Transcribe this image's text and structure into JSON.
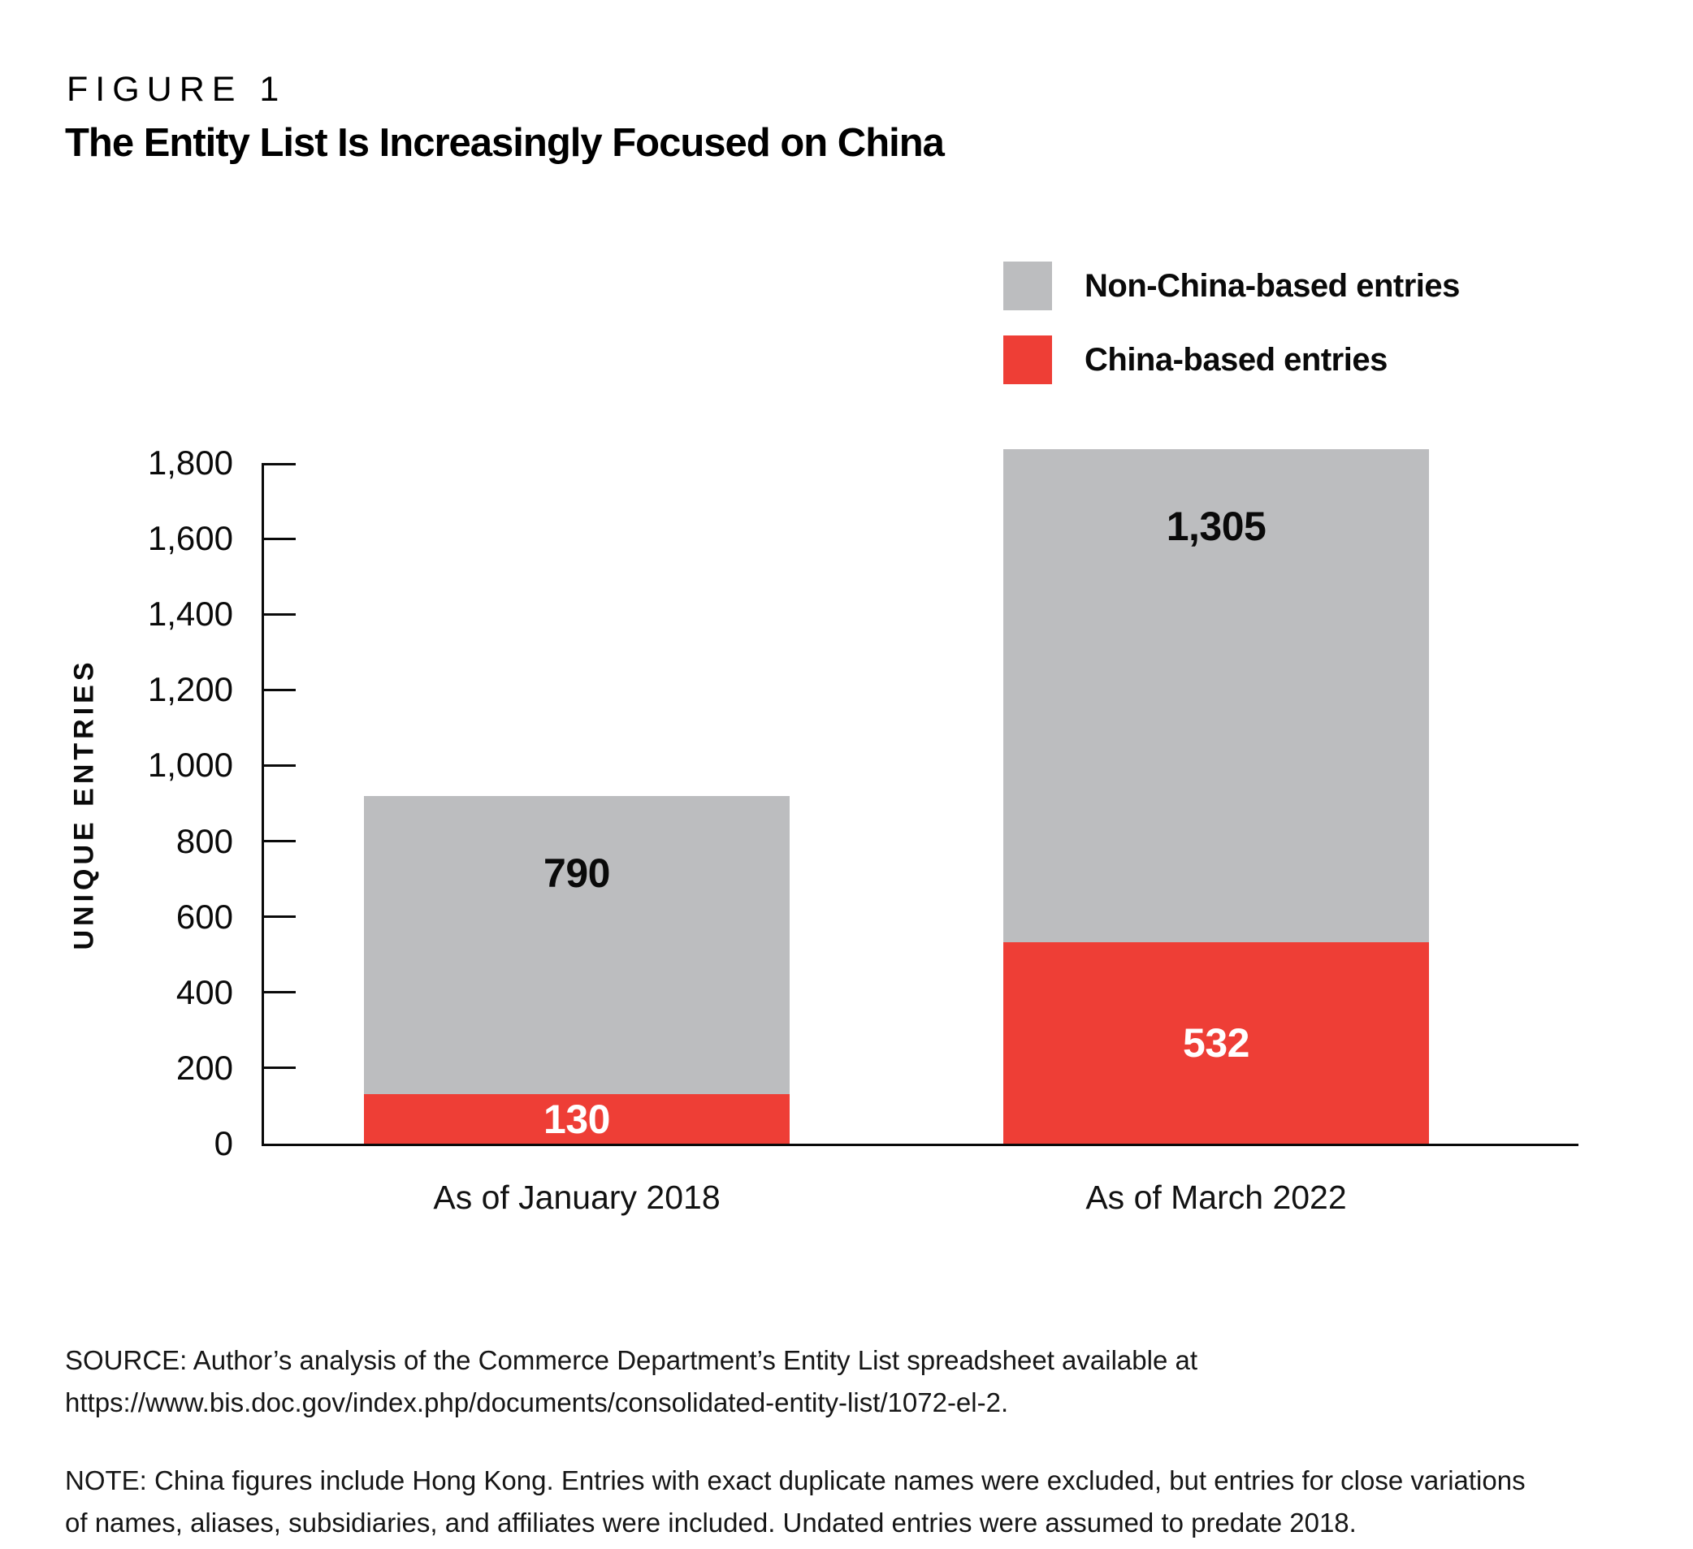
{
  "figure_label": "FIGURE 1",
  "title": "The Entity List Is Increasingly Focused on China",
  "legend": {
    "items": [
      {
        "label": "Non-China-based entries",
        "color": "#bcbdbf"
      },
      {
        "label": "China-based entries",
        "color": "#ee3e36"
      }
    ]
  },
  "chart_data": {
    "type": "bar",
    "stacked": true,
    "title": "The Entity List Is Increasingly Focused on China",
    "categories": [
      "As of January 2018",
      "As of March 2022"
    ],
    "series": [
      {
        "name": "China-based entries",
        "color": "#ee3e36",
        "values": [
          130,
          532
        ],
        "labels": [
          "130",
          "532"
        ],
        "label_color": "#ffffff",
        "label_position": "center"
      },
      {
        "name": "Non-China-based entries",
        "color": "#bcbdbf",
        "values": [
          790,
          1305
        ],
        "labels": [
          "790",
          "1,305"
        ],
        "label_color": "#0a0a0a",
        "label_position": "top"
      }
    ],
    "xlabel": "",
    "ylabel": "UNIQUE ENTRIES",
    "ylim": [
      0,
      1800
    ],
    "ytick_step": 200,
    "ytick_labels": [
      "0",
      "200",
      "400",
      "600",
      "800",
      "1,000",
      "1,200",
      "1,400",
      "1,600",
      "1,800"
    ],
    "grid": false,
    "legend_position": "top-right"
  },
  "source": {
    "line1": "SOURCE: Author’s analysis of the Commerce Department’s Entity List spreadsheet available at",
    "line2": "https://www.bis.doc.gov/index.php/documents/consolidated-entity-list/1072-el-2."
  },
  "note": {
    "line1": "NOTE: China figures include Hong Kong. Entries with exact duplicate names were excluded, but entries for close variations",
    "line2": "of names, aliases, subsidiaries, and affiliates were included. Undated entries were assumed to predate 2018."
  }
}
